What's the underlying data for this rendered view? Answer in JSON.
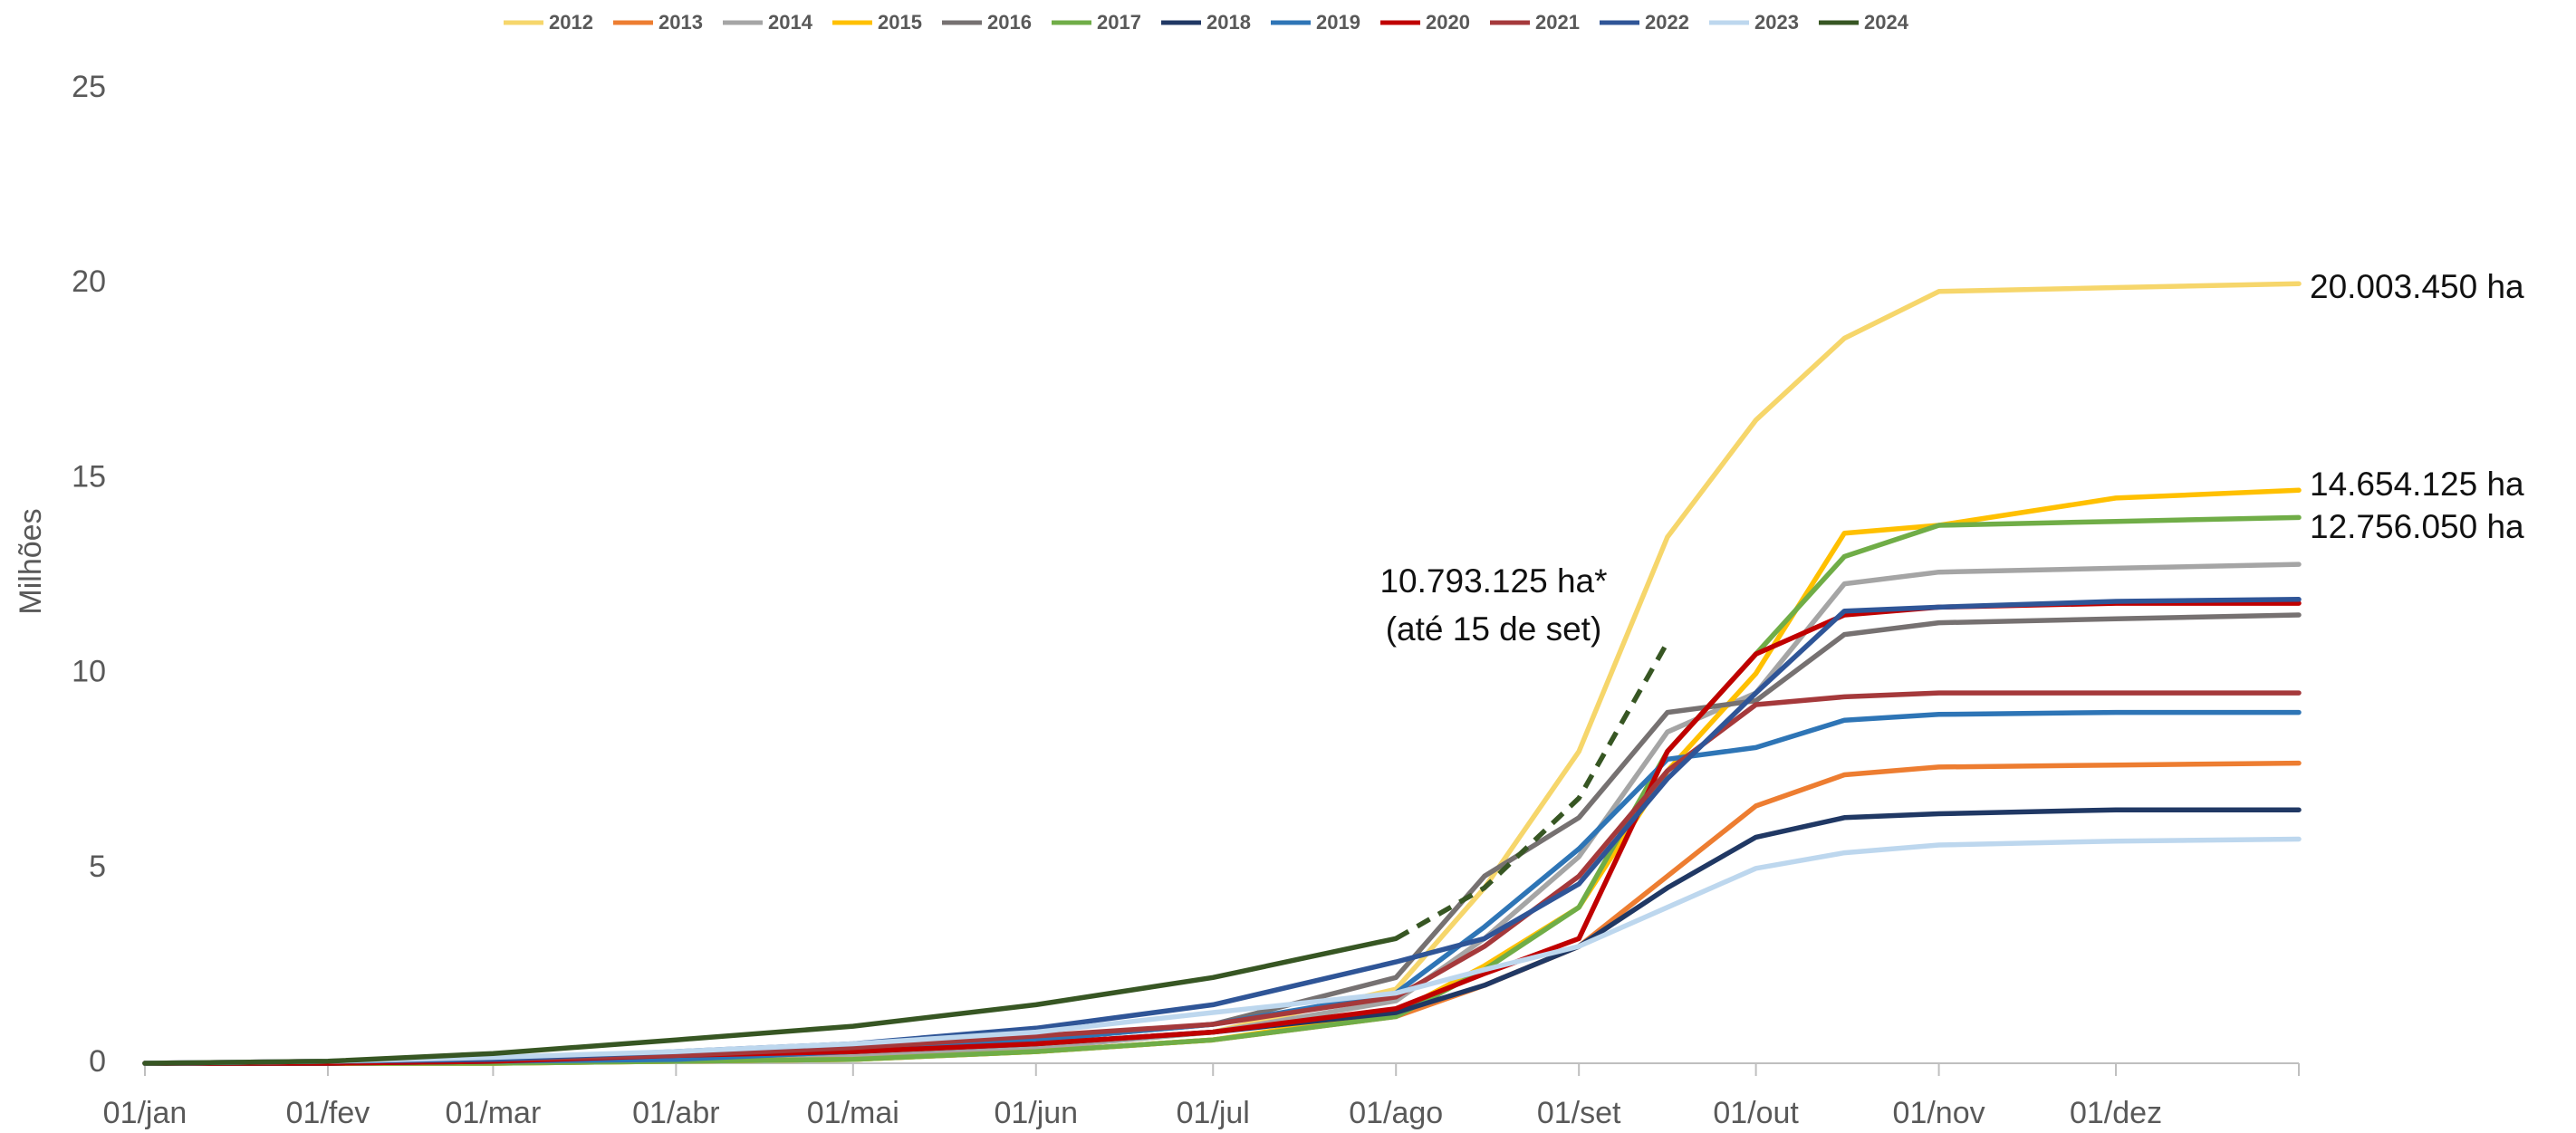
{
  "chart_data": {
    "type": "line",
    "y_label": "Milhões",
    "x": [
      0,
      31,
      59,
      90,
      120,
      151,
      181,
      212,
      227,
      243,
      258,
      273,
      288,
      304,
      334,
      365
    ],
    "xlim": [
      0,
      365
    ],
    "xticks": [
      {
        "value": 0,
        "label": "01/jan"
      },
      {
        "value": 31,
        "label": "01/fev"
      },
      {
        "value": 59,
        "label": "01/mar"
      },
      {
        "value": 90,
        "label": "01/abr"
      },
      {
        "value": 120,
        "label": "01/mai"
      },
      {
        "value": 151,
        "label": "01/jun"
      },
      {
        "value": 181,
        "label": "01/jul"
      },
      {
        "value": 212,
        "label": "01/ago"
      },
      {
        "value": 243,
        "label": "01/set"
      },
      {
        "value": 273,
        "label": "01/out"
      },
      {
        "value": 304,
        "label": "01/nov"
      },
      {
        "value": 334,
        "label": "01/dez"
      }
    ],
    "ylim": [
      0,
      25
    ],
    "yticks": [
      0,
      5,
      10,
      15,
      20,
      25
    ],
    "grid": false,
    "legend": "top",
    "series": [
      {
        "name": "2012",
        "color": "#f6d66b",
        "values": [
          0,
          0,
          0.05,
          0.1,
          0.2,
          0.4,
          0.8,
          1.9,
          4.5,
          8.0,
          13.5,
          16.5,
          18.6,
          19.8,
          19.9,
          20.0
        ]
      },
      {
        "name": "2013",
        "color": "#ed7d31",
        "values": [
          0,
          0,
          0,
          0.05,
          0.1,
          0.3,
          0.6,
          1.2,
          2.0,
          3.0,
          4.8,
          6.6,
          7.4,
          7.6,
          7.65,
          7.7
        ]
      },
      {
        "name": "2014",
        "color": "#a5a5a5",
        "values": [
          0,
          0,
          0.05,
          0.1,
          0.2,
          0.4,
          0.8,
          1.6,
          3.2,
          5.3,
          8.5,
          9.5,
          12.3,
          12.6,
          12.7,
          12.8
        ]
      },
      {
        "name": "2015",
        "color": "#ffc000",
        "values": [
          0,
          0,
          0,
          0.05,
          0.1,
          0.3,
          0.6,
          1.3,
          2.5,
          4.0,
          7.5,
          10.0,
          13.6,
          13.8,
          14.5,
          14.7
        ]
      },
      {
        "name": "2016",
        "color": "#767171",
        "values": [
          0,
          0,
          0.05,
          0.1,
          0.3,
          0.6,
          1.0,
          2.2,
          4.8,
          6.3,
          9.0,
          9.3,
          11.0,
          11.3,
          11.4,
          11.5
        ]
      },
      {
        "name": "2017",
        "color": "#70ad47",
        "values": [
          0,
          0,
          0,
          0.05,
          0.1,
          0.3,
          0.6,
          1.2,
          2.4,
          4.0,
          8.0,
          10.5,
          13.0,
          13.8,
          13.9,
          14.0
        ]
      },
      {
        "name": "2018",
        "color": "#203864",
        "values": [
          0,
          0,
          0.05,
          0.2,
          0.3,
          0.5,
          0.8,
          1.3,
          2.0,
          3.0,
          4.5,
          5.8,
          6.3,
          6.4,
          6.5,
          6.5
        ]
      },
      {
        "name": "2019",
        "color": "#2e75b6",
        "values": [
          0,
          0,
          0.05,
          0.1,
          0.3,
          0.6,
          1.0,
          1.8,
          3.5,
          5.5,
          7.8,
          8.1,
          8.8,
          8.95,
          9.0,
          9.0
        ]
      },
      {
        "name": "2020",
        "color": "#c00000",
        "values": [
          0,
          0,
          0.05,
          0.2,
          0.3,
          0.5,
          0.8,
          1.4,
          2.3,
          3.2,
          8.0,
          10.5,
          11.5,
          11.7,
          11.8,
          11.8
        ]
      },
      {
        "name": "2021",
        "color": "#a5393b",
        "values": [
          0,
          0.05,
          0.1,
          0.2,
          0.4,
          0.7,
          1.0,
          1.7,
          3.0,
          4.8,
          7.5,
          9.2,
          9.4,
          9.5,
          9.5,
          9.5
        ]
      },
      {
        "name": "2022",
        "color": "#2f5597",
        "values": [
          0,
          0.05,
          0.1,
          0.3,
          0.5,
          0.9,
          1.5,
          2.6,
          3.2,
          4.6,
          7.3,
          9.5,
          11.6,
          11.7,
          11.85,
          11.9
        ]
      },
      {
        "name": "2023",
        "color": "#bdd7ee",
        "values": [
          0,
          0.05,
          0.15,
          0.3,
          0.5,
          0.8,
          1.3,
          1.8,
          2.4,
          3.0,
          4.0,
          5.0,
          5.4,
          5.6,
          5.7,
          5.75
        ]
      },
      {
        "name": "2024",
        "color": "#375623",
        "dashed_from": 212,
        "values": [
          0,
          0.05,
          0.25,
          0.6,
          0.95,
          1.5,
          2.2,
          3.2,
          4.5,
          6.8,
          10.8,
          null,
          null,
          null,
          null,
          null
        ]
      }
    ],
    "annotations": [
      "20.003.450 ha",
      "14.654.125 ha",
      "12.756.050 ha",
      "10.793.125 ha*",
      "(até 15 de set)"
    ]
  }
}
